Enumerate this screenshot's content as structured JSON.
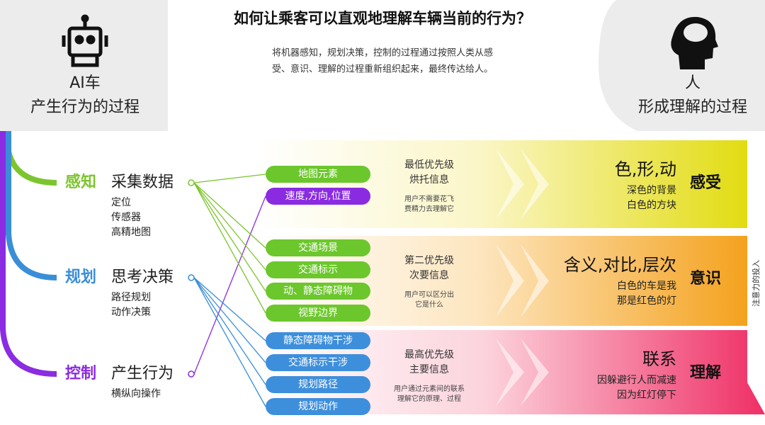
{
  "title": "如何让乘客可以直观地理解车辆当前的行为？",
  "subtitle": [
    "将机器感知，规划决策，控制的过程通过按照人类从感",
    "受、意识、理解的过程重新组织起来，最终传达给人。"
  ],
  "left_header": [
    "AI车",
    "产生行为的过程"
  ],
  "right_header": [
    "人",
    "形成理解的过程"
  ],
  "stages": [
    {
      "name": "感知",
      "title": "采集数据",
      "items": [
        "定位",
        "传感器",
        "高精地图"
      ]
    },
    {
      "name": "规划",
      "title": "思考决策",
      "items": [
        "路径规划",
        "动作决策"
      ]
    },
    {
      "name": "控制",
      "title": "产生行为",
      "items": [
        "横纵向操作"
      ]
    }
  ],
  "tags": [
    "地图元素",
    "速度,方向,位置",
    "交通场景",
    "交通标示",
    "动、静态障碍物",
    "视野边界",
    "静态障碍物干涉",
    "交通标示干涉",
    "规划路径",
    "规划动作"
  ],
  "bands": [
    {
      "priority": "最低优先级",
      "info": "烘托信息",
      "note": [
        "用户不需要花飞",
        "费精力去理解它"
      ],
      "heading": "色,形,动",
      "examples": [
        "深色的背景",
        "白色的方块"
      ],
      "label": "感受"
    },
    {
      "priority": "第二优先级",
      "info": "次要信息",
      "note": [
        "用户可以区分出",
        "它是什么"
      ],
      "heading": "含义,对比,层次",
      "examples": [
        "白色的车是我",
        "那是红色的灯"
      ],
      "label": "意识"
    },
    {
      "priority": "最高优先级",
      "info": "主要信息",
      "note": [
        "用户通过元素间的联系",
        "理解它的原理、过程"
      ],
      "heading": "联系",
      "examples": [
        "因躲避行人而减速",
        "因为红灯停下"
      ],
      "label": "理解"
    }
  ],
  "side_label": "注意力的投入"
}
